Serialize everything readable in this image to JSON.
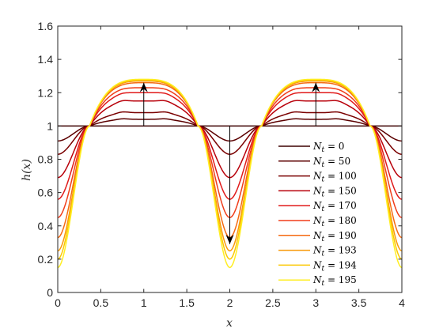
{
  "chart_data": {
    "type": "line",
    "title": "",
    "xlabel": "x",
    "ylabel": "h(x)",
    "xlim": [
      0,
      4
    ],
    "ylim": [
      0,
      1.6
    ],
    "xticks": [
      0,
      0.5,
      1,
      1.5,
      2,
      2.5,
      3,
      3.5,
      4
    ],
    "xtick_labels": [
      "0",
      "0.5",
      "1",
      "1.5",
      "2",
      "2.5",
      "3",
      "3.5",
      "4"
    ],
    "yticks": [
      0,
      0.2,
      0.4,
      0.6,
      0.8,
      1.0,
      1.2,
      1.4,
      1.6
    ],
    "ytick_labels": [
      "0",
      "0.2",
      "0.4",
      "0.6",
      "0.8",
      "1",
      "1.2",
      "1.4",
      "1.6"
    ],
    "grid": false,
    "legend_position": "lower-right",
    "x_sample": [
      0,
      0.25,
      0.5,
      0.75,
      1,
      1.25,
      1.5,
      1.75,
      2,
      2.25,
      2.5,
      2.75,
      3,
      3.25,
      3.5,
      3.75,
      4
    ],
    "series": [
      {
        "name": "N_t = 0",
        "label_sub": "t",
        "label_value": "0",
        "color": "#3d0000",
        "peak": 1.0,
        "trough": 1.0
      },
      {
        "name": "N_t = 50",
        "label_sub": "t",
        "label_value": "50",
        "color": "#5c0000",
        "peak": 1.04,
        "trough": 0.91
      },
      {
        "name": "N_t = 100",
        "label_sub": "t",
        "label_value": "100",
        "color": "#7a0000",
        "peak": 1.08,
        "trough": 0.83
      },
      {
        "name": "N_t = 150",
        "label_sub": "t",
        "label_value": "150",
        "color": "#b8000a",
        "peak": 1.15,
        "trough": 0.69
      },
      {
        "name": "N_t = 170",
        "label_sub": "t",
        "label_value": "170",
        "color": "#e01a1a",
        "peak": 1.2,
        "trough": 0.56
      },
      {
        "name": "N_t = 180",
        "label_sub": "t",
        "label_value": "180",
        "color": "#f03d1a",
        "peak": 1.23,
        "trough": 0.45
      },
      {
        "name": "N_t = 190",
        "label_sub": "t",
        "label_value": "190",
        "color": "#f56a12",
        "peak": 1.26,
        "trough": 0.33
      },
      {
        "name": "N_t = 193",
        "label_sub": "t",
        "label_value": "193",
        "color": "#f89a0a",
        "peak": 1.27,
        "trough": 0.25
      },
      {
        "name": "N_t = 194",
        "label_sub": "t",
        "label_value": "194",
        "color": "#fbc800",
        "peak": 1.275,
        "trough": 0.2
      },
      {
        "name": "N_t = 195",
        "label_sub": "t",
        "label_value": "195",
        "color": "#ffee22",
        "peak": 1.28,
        "trough": 0.15
      }
    ],
    "annotations": [
      {
        "type": "arrow",
        "from": [
          1,
          1.0
        ],
        "to": [
          1,
          1.26
        ],
        "color": "#000000"
      },
      {
        "type": "arrow",
        "from": [
          3,
          1.0
        ],
        "to": [
          3,
          1.26
        ],
        "color": "#000000"
      },
      {
        "type": "arrow",
        "from": [
          2,
          1.0
        ],
        "to": [
          2,
          0.29
        ],
        "color": "#000000"
      }
    ]
  }
}
